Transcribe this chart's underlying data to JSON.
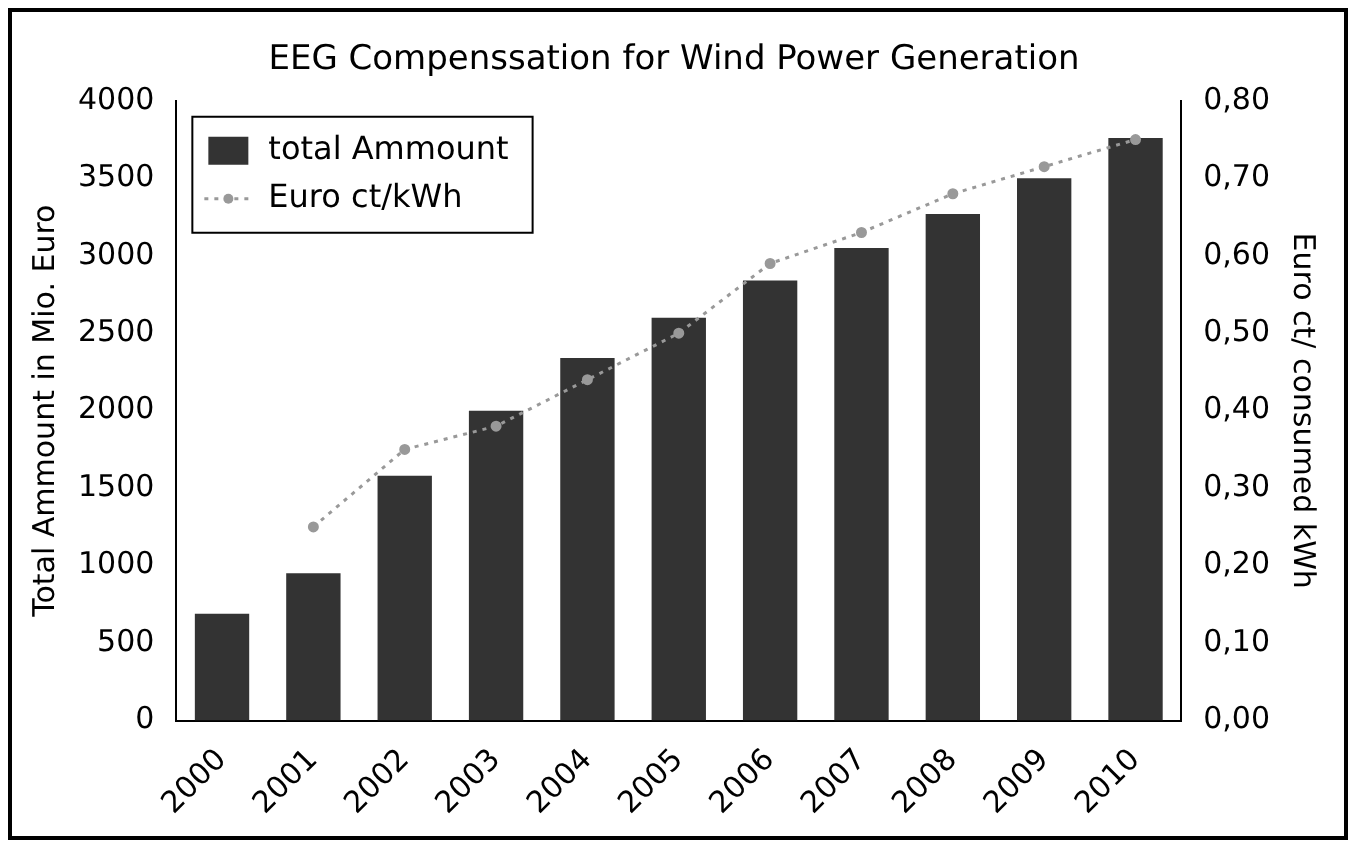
{
  "chart_data": {
    "type": "bar",
    "title": "EEG Compenssation for Wind Power Generation",
    "ylabel": "Total Ammount in Mio. Euro",
    "y2label": "Euro ct/ consumed kWh",
    "categories": [
      "2000",
      "2001",
      "2002",
      "2003",
      "2004",
      "2005",
      "2006",
      "2007",
      "2008",
      "2009",
      "2010"
    ],
    "series": [
      {
        "name": "total Ammount",
        "color": "#333333",
        "values": [
          690,
          950,
          1580,
          2000,
          2340,
          2600,
          2840,
          3050,
          3270,
          3500,
          3760
        ]
      },
      {
        "name": "Euro ct/kWh",
        "type": "line",
        "axis": "y2",
        "color": "#999999",
        "line_style": "dotted",
        "marker": "circle",
        "values": [
          null,
          0.25,
          0.35,
          0.38,
          0.44,
          0.5,
          0.59,
          0.63,
          0.68,
          0.715,
          0.75
        ]
      }
    ],
    "ylim": [
      0,
      4000
    ],
    "yticks": [
      0,
      500,
      1000,
      1500,
      2000,
      2500,
      3000,
      3500,
      4000
    ],
    "y2lim": [
      0,
      0.8
    ],
    "y2ticks": [
      {
        "value": 0,
        "label": "0,00"
      },
      {
        "value": 0.1,
        "label": "0,10"
      },
      {
        "value": 0.2,
        "label": "0,20"
      },
      {
        "value": 0.3,
        "label": "0,30"
      },
      {
        "value": 0.4,
        "label": "0,40"
      },
      {
        "value": 0.5,
        "label": "0,50"
      },
      {
        "value": 0.6,
        "label": "0,60"
      },
      {
        "value": 0.7,
        "label": "0,70"
      },
      {
        "value": 0.8,
        "label": "0,80"
      }
    ],
    "grid": false,
    "legend": "top left"
  }
}
